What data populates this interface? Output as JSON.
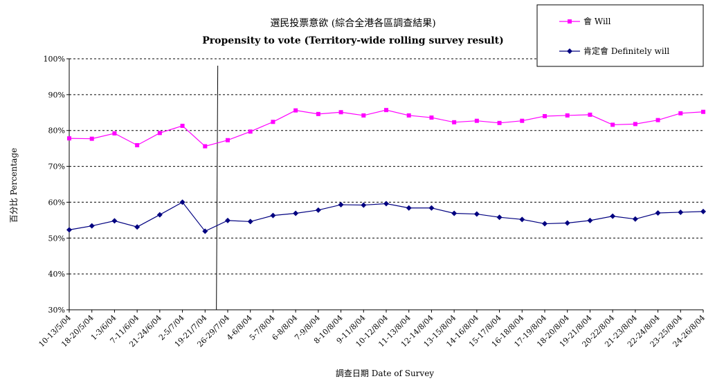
{
  "chart_data": {
    "type": "line",
    "title": "選民投票意欲 (綜合全港各區調查結果)",
    "subtitle": "Propensity to vote (Territory-wide rolling survey result)",
    "xlabel": "調查日期 Date of Survey",
    "ylabel": "百分比 Percentage",
    "ylim": [
      30,
      100
    ],
    "yticks": [
      "30%",
      "40%",
      "50%",
      "60%",
      "70%",
      "80%",
      "90%",
      "100%"
    ],
    "grid": "horizontal dashed",
    "legend_position": "top-right",
    "categories": [
      "10-13/5/04",
      "18-20/5/04",
      "1-3/6/04",
      "7-11/6/04",
      "21-24/6/04",
      "2-5/7/04",
      "19-21/7/04",
      "26-29/7/04",
      "4-6/8/04",
      "5-7/8/04",
      "6-8/8/04",
      "7-9/8/04",
      "8-10/8/04",
      "9-11/8/04",
      "10-12/8/04",
      "11-13/8/04",
      "12-14/8/04",
      "13-15/8/04",
      "14-16/8/04",
      "15-17/8/04",
      "16-18/8/04",
      "17-19/8/04",
      "18-20/8/04",
      "19-21/8/04",
      "20-22/8/04",
      "21-23/8/04",
      "22-24/8/04",
      "23-25/8/04",
      "24-26/8/04"
    ],
    "series": [
      {
        "name": "會 Will",
        "color": "#ff00ff",
        "marker": "square",
        "values": [
          77.8,
          77.7,
          79.2,
          75.9,
          79.3,
          81.3,
          75.6,
          77.3,
          79.7,
          82.4,
          85.6,
          84.6,
          85.1,
          84.2,
          85.7,
          84.2,
          83.6,
          82.3,
          82.7,
          82.1,
          82.7,
          84.0,
          84.2,
          84.4,
          81.6,
          81.8,
          82.9,
          84.8,
          85.2
        ]
      },
      {
        "name": "肯定會 Definitely will",
        "color": "#000080",
        "marker": "diamond",
        "values": [
          52.3,
          53.4,
          54.8,
          53.1,
          56.5,
          60.0,
          51.9,
          54.9,
          54.6,
          56.3,
          56.9,
          57.8,
          59.3,
          59.2,
          59.6,
          58.4,
          58.4,
          56.9,
          56.7,
          55.8,
          55.2,
          54.0,
          54.2,
          54.9,
          56.1,
          55.3,
          57.0,
          57.2,
          57.4
        ]
      }
    ],
    "annotations": [
      {
        "type": "vertical-line",
        "between": [
          "19-21/7/04",
          "26-29/7/04"
        ]
      }
    ]
  }
}
